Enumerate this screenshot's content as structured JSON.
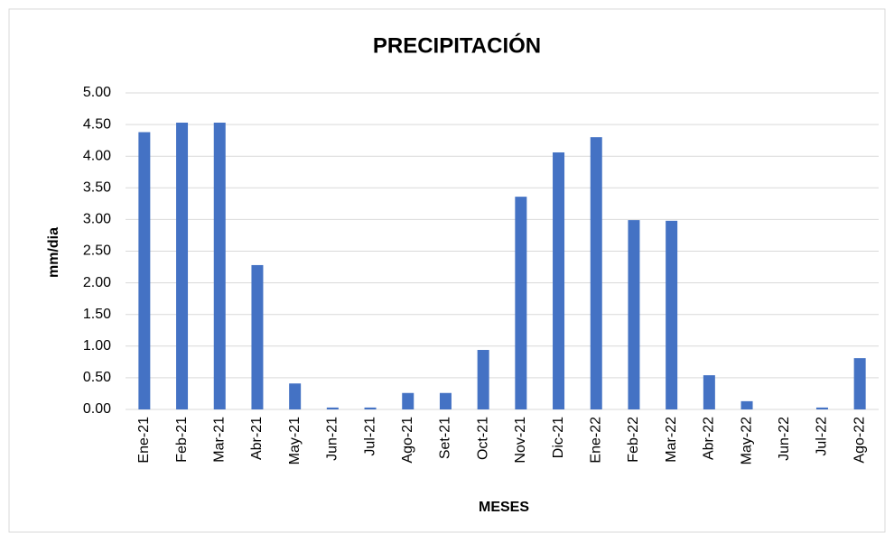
{
  "chart_data": {
    "type": "bar",
    "title": "PRECIPITACIÓN",
    "x_label": "MESES",
    "y_label": "mm/dia",
    "categories": [
      "Ene-21",
      "Feb-21",
      "Mar-21",
      "Abr-21",
      "May-21",
      "Jun-21",
      "Jul-21",
      "Ago-21",
      "Set-21",
      "Oct-21",
      "Nov-21",
      "Dic-21",
      "Ene-22",
      "Feb-22",
      "Mar-22",
      "Abr-22",
      "May-22",
      "Jun-22",
      "Jul-22",
      "Ago-22"
    ],
    "values": [
      4.38,
      4.53,
      4.53,
      2.28,
      0.41,
      0.03,
      0.03,
      0.26,
      0.26,
      0.94,
      3.36,
      4.06,
      4.3,
      2.99,
      2.98,
      0.54,
      0.13,
      0,
      0.03,
      0.81
    ],
    "color": "#4472c4",
    "ylim": [
      0,
      5
    ],
    "yticks": [
      {
        "value": 0,
        "label": "0.00"
      },
      {
        "value": 0.5,
        "label": "0.50"
      },
      {
        "value": 1,
        "label": "1.00"
      },
      {
        "value": 1.5,
        "label": "1.50"
      },
      {
        "value": 2,
        "label": "2.00"
      },
      {
        "value": 2.5,
        "label": "2.50"
      },
      {
        "value": 3,
        "label": "3.00"
      },
      {
        "value": 3.5,
        "label": "3.50"
      },
      {
        "value": 4,
        "label": "4.00"
      },
      {
        "value": 4.5,
        "label": "4.50"
      },
      {
        "value": 5,
        "label": "5.00"
      }
    ],
    "grid": true
  }
}
